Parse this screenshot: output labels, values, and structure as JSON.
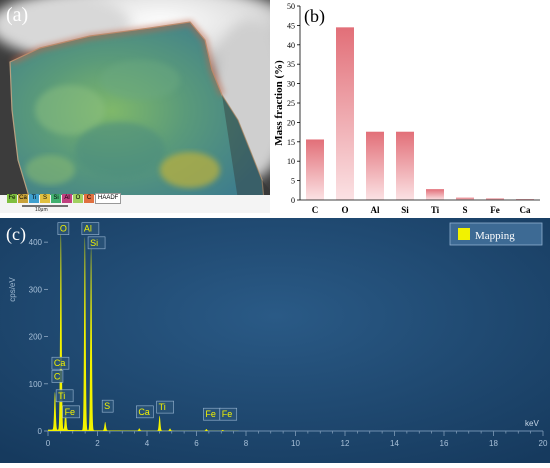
{
  "panel_a": {
    "label": "(a)",
    "legend_elements": [
      "Fe",
      "Ca",
      "Ti",
      "S",
      "Si",
      "Al",
      "O",
      "C"
    ],
    "legend_colors": [
      "#7fbf3f",
      "#c8a23a",
      "#3fa0d0",
      "#e0c040",
      "#40b070",
      "#c04080",
      "#a0d060",
      "#e07040"
    ],
    "legend_tail": "HAADF",
    "scale_label": "10μm"
  },
  "chart_data": [
    {
      "type": "bar",
      "panel_label": "(b)",
      "categories": [
        "C",
        "O",
        "Al",
        "Si",
        "Ti",
        "S",
        "Fe",
        "Ca"
      ],
      "values": [
        15.6,
        44.5,
        17.6,
        17.6,
        2.8,
        0.6,
        0.4,
        0.2
      ],
      "ylabel": "Mass fraction (%)",
      "ylim": [
        0,
        50
      ],
      "yticks": [
        0,
        5,
        10,
        15,
        20,
        25,
        30,
        35,
        40,
        45,
        50
      ],
      "color": "#e8868c"
    },
    {
      "type": "line",
      "panel_label": "(c)",
      "legend": "Mapping",
      "xlabel": "keV",
      "ylabel": "cps/eV",
      "xlim": [
        0,
        20
      ],
      "ylim": [
        0,
        430
      ],
      "xticks": [
        0,
        2,
        4,
        6,
        8,
        10,
        12,
        14,
        16,
        18,
        20
      ],
      "yticks": [
        0,
        100,
        200,
        300,
        400
      ],
      "peaks": [
        {
          "x": 0.28,
          "y": 80
        },
        {
          "x": 0.52,
          "y": 420
        },
        {
          "x": 0.71,
          "y": 45
        },
        {
          "x": 1.49,
          "y": 410
        },
        {
          "x": 1.74,
          "y": 390
        },
        {
          "x": 2.31,
          "y": 18
        },
        {
          "x": 3.69,
          "y": 5
        },
        {
          "x": 4.51,
          "y": 32
        },
        {
          "x": 4.93,
          "y": 5
        },
        {
          "x": 6.4,
          "y": 4
        },
        {
          "x": 7.06,
          "y": 2
        }
      ],
      "peak_labels": [
        {
          "text": "O",
          "x": 0.52,
          "y": 418
        },
        {
          "text": "Al",
          "x": 1.49,
          "y": 418
        },
        {
          "text": "Si",
          "x": 1.74,
          "y": 388
        },
        {
          "text": "Ca",
          "x": 0.28,
          "y": 133
        },
        {
          "text": "C",
          "x": 0.28,
          "y": 105
        },
        {
          "text": "Ti",
          "x": 0.45,
          "y": 64
        },
        {
          "text": "Fe",
          "x": 0.71,
          "y": 30
        },
        {
          "text": "S",
          "x": 2.31,
          "y": 42
        },
        {
          "text": "Ca",
          "x": 3.69,
          "y": 30
        },
        {
          "text": "Ti",
          "x": 4.51,
          "y": 40
        },
        {
          "text": "Fe",
          "x": 6.4,
          "y": 25
        },
        {
          "text": "Fe",
          "x": 7.06,
          "y": 25
        }
      ],
      "line_color": "#f2f200"
    }
  ]
}
